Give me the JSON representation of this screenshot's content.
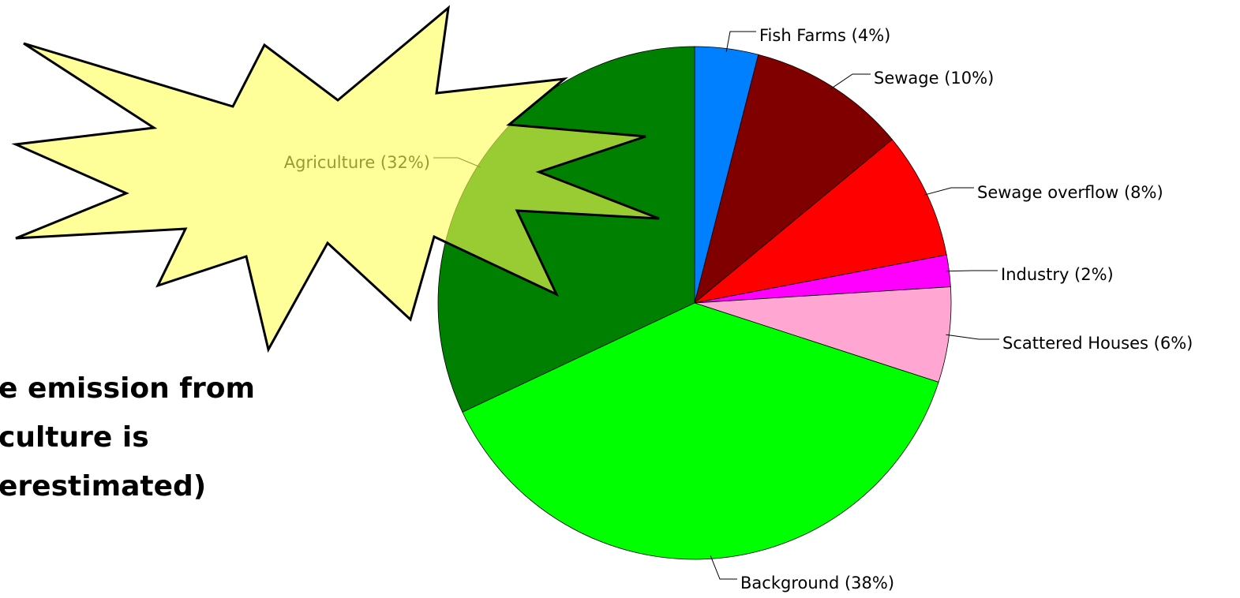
{
  "chart_data": {
    "type": "pie",
    "categories": [
      "Fish Farms (4%)",
      "Sewage (10%)",
      "Sewage overflow (8%)",
      "Industry (2%)",
      "Scattered Houses (6%)",
      "Background (38%)",
      "Agriculture (32%)"
    ],
    "values": [
      4,
      10,
      8,
      2,
      6,
      38,
      32
    ],
    "colors": [
      "#0080ff",
      "#800000",
      "#ff0000",
      "#ff00ff",
      "#ffa6d2",
      "#00ff00",
      "#008000"
    ],
    "annotation": [
      "e emission from",
      "culture is",
      "erestimated)"
    ]
  }
}
